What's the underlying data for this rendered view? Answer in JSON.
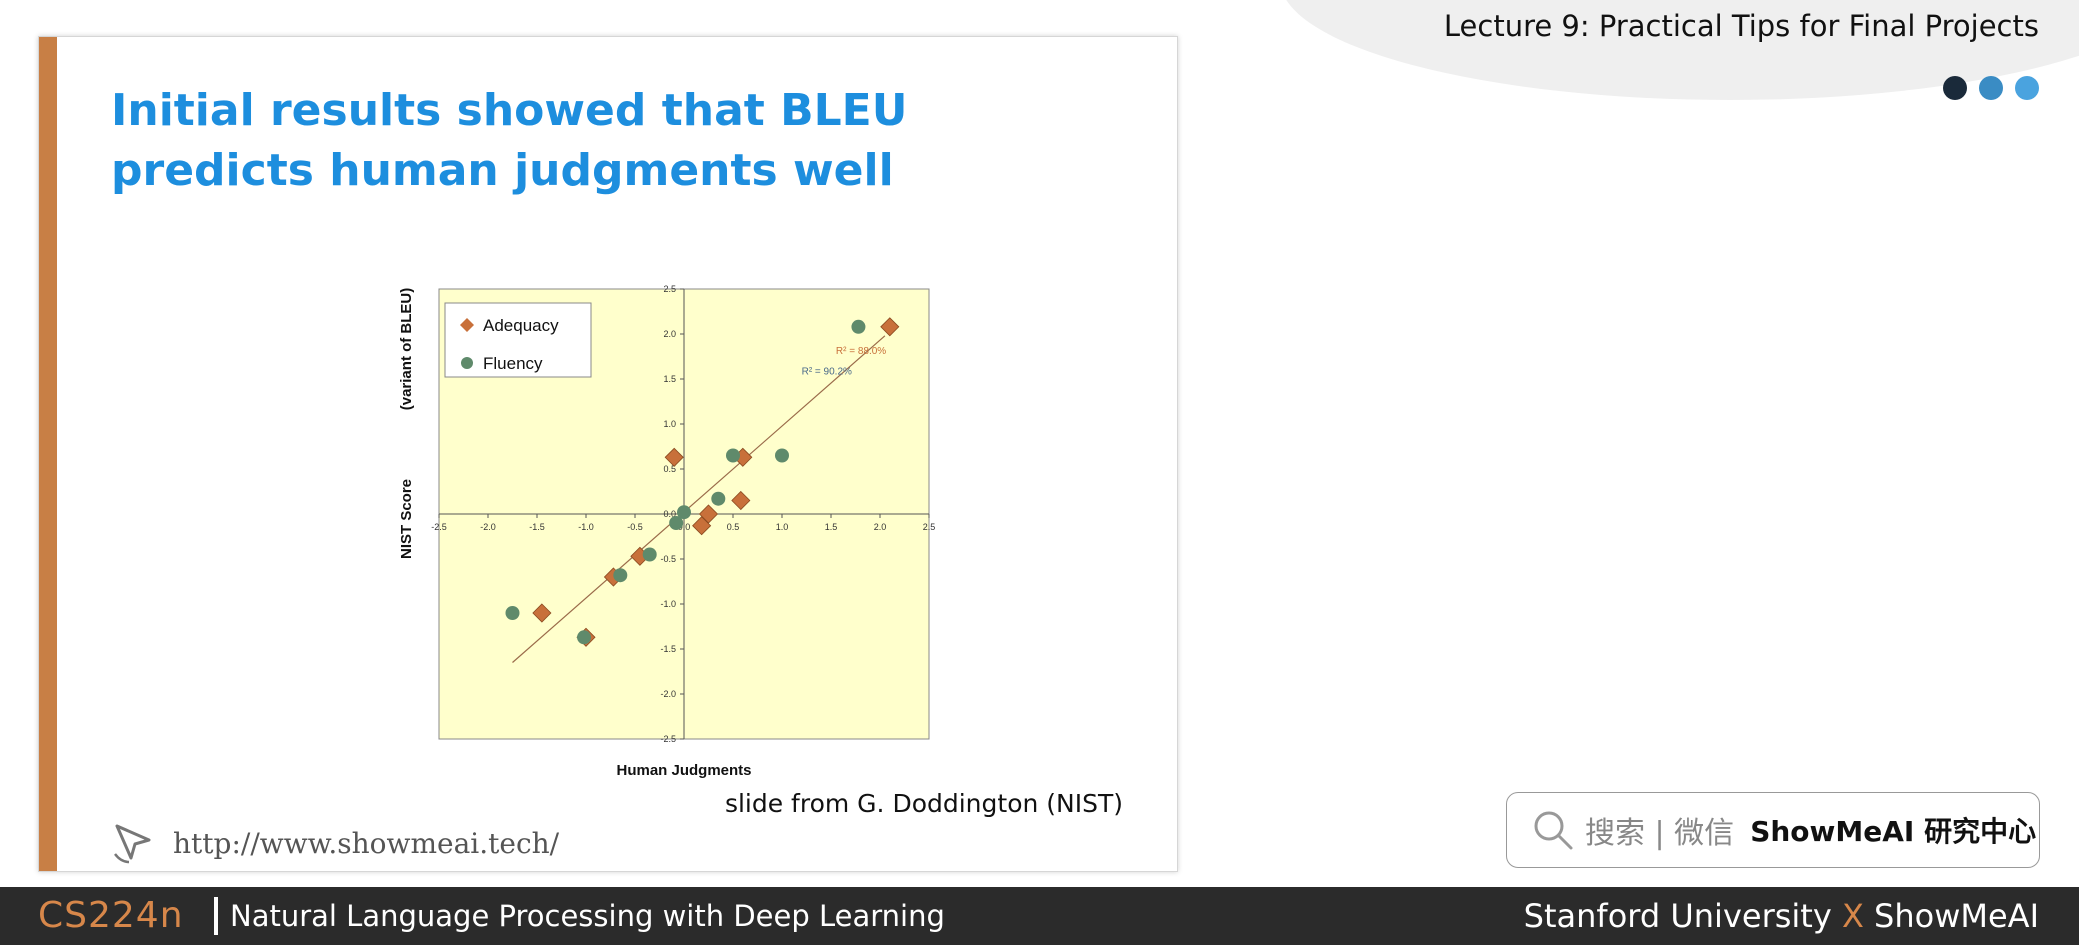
{
  "header": {
    "lecture_title": "Lecture 9: Practical Tips for Final Projects",
    "dot_colors": [
      "#1a2a3a",
      "#3a8cc4",
      "#4aa3df"
    ]
  },
  "slide": {
    "title": "Initial results showed that BLEU predicts human judgments well",
    "credit": "slide from G. Doddington (NIST)",
    "url": "http://www.showmeai.tech/",
    "accent_color": "#c87f45",
    "title_color": "#1d8ede"
  },
  "search_badge": {
    "search_label": "搜索 | 微信",
    "brand": "ShowMeAI 研究中心"
  },
  "footer": {
    "course_code": "CS224n",
    "course_name": "Natural Language Processing with Deep Learning",
    "university": "Stanford University",
    "x": "X",
    "partner": "ShowMeAI"
  },
  "chart_data": {
    "type": "scatter",
    "xlabel": "Human Judgments",
    "ylabel": "NIST Score",
    "ylabel_note": "(variant of BLEU)",
    "xlim": [
      -2.5,
      2.5
    ],
    "ylim": [
      -2.5,
      2.5
    ],
    "x_ticks": [
      "-2.5",
      "-2.0",
      "-1.5",
      "-1.0",
      "-0.5",
      "0.0",
      "0.5",
      "1.0",
      "1.5",
      "2.0",
      "2.5"
    ],
    "y_ticks": [
      "2.5",
      "2.0",
      "1.5",
      "1.0",
      "0.5",
      "0.0",
      "-0.5",
      "-1.0",
      "-1.5",
      "-2.0",
      "-2.5"
    ],
    "legend_position": "top-left",
    "background": "#ffffcc",
    "series": [
      {
        "name": "Adequacy",
        "marker": "diamond",
        "color": "#c8703a",
        "r2_label": "R² = 88.0%",
        "points": [
          [
            -1.45,
            -1.1
          ],
          [
            -1.0,
            -1.37
          ],
          [
            -0.72,
            -0.7
          ],
          [
            -0.45,
            -0.47
          ],
          [
            -0.1,
            0.63
          ],
          [
            0.18,
            -0.13
          ],
          [
            0.25,
            0.0
          ],
          [
            0.58,
            0.15
          ],
          [
            0.6,
            0.63
          ],
          [
            2.1,
            2.08
          ]
        ]
      },
      {
        "name": "Fluency",
        "marker": "circle",
        "color": "#5f8a6b",
        "r2_label": "R² = 90.2%",
        "points": [
          [
            -1.75,
            -1.1
          ],
          [
            -1.02,
            -1.37
          ],
          [
            -0.65,
            -0.68
          ],
          [
            -0.35,
            -0.45
          ],
          [
            -0.08,
            -0.1
          ],
          [
            0.0,
            0.02
          ],
          [
            0.35,
            0.17
          ],
          [
            0.5,
            0.65
          ],
          [
            1.0,
            0.65
          ],
          [
            1.78,
            2.08
          ]
        ]
      }
    ],
    "trendline": {
      "from": [
        -1.75,
        -1.65
      ],
      "to": [
        2.05,
        1.98
      ],
      "color": "#9a6b4a"
    }
  }
}
